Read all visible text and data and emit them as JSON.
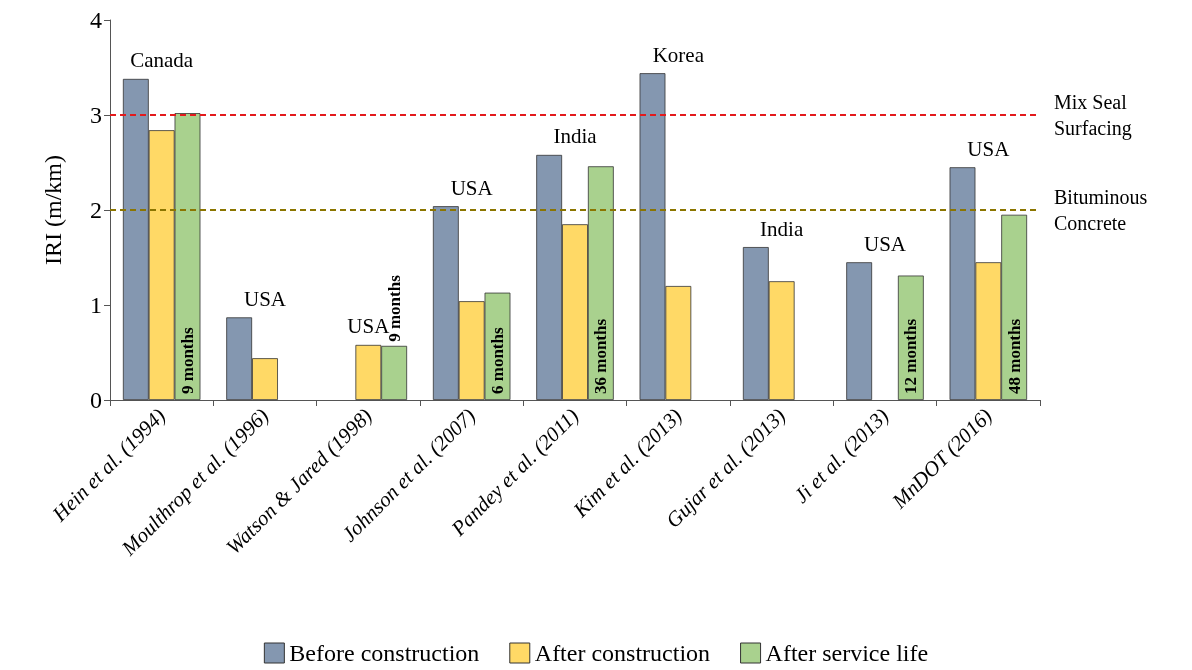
{
  "chart_data": {
    "type": "bar",
    "ylabel": "IRI (m/km)",
    "categories": [
      "Hein et al. (1994)",
      "Moulthrop et al. (1996)",
      "Watson & Jared (1998)",
      "Johnson et al. (2007)",
      "Pandey et al. (2011)",
      "Kim et al. (2013)",
      "Gujar et al. (2013)",
      "Ji et al. (2013)",
      "MnDOT (2016)"
    ],
    "series": [
      {
        "name": "Before construction",
        "color": "#8497b0",
        "values": [
          3.38,
          0.87,
          null,
          2.04,
          2.58,
          3.44,
          1.61,
          1.45,
          2.45
        ]
      },
      {
        "name": "After construction",
        "color": "#ffd966",
        "values": [
          2.84,
          0.44,
          0.58,
          1.04,
          1.85,
          1.2,
          1.25,
          null,
          1.45
        ]
      },
      {
        "name": "After service life",
        "color": "#a9d18e",
        "values": [
          3.02,
          null,
          0.57,
          1.13,
          2.46,
          null,
          null,
          1.31,
          1.95
        ]
      }
    ],
    "ylim": [
      0,
      4
    ],
    "yticks": [
      0,
      1,
      2,
      3,
      4
    ],
    "grid": false,
    "legend": "bottom",
    "ref_lines": [
      {
        "axis": "y",
        "value": 3,
        "label": "Mix Seal Surfacing",
        "color": "#e31a1c",
        "line_style": "dashed"
      },
      {
        "axis": "y",
        "value": 2,
        "label": "Bituminous Concrete",
        "color": "#8b7500",
        "line_style": "dashed"
      }
    ],
    "annotations": [
      "Canada",
      "USA",
      "USA",
      "USA",
      "India",
      "Korea",
      "India",
      "USA",
      "USA",
      "9 months",
      "9 months",
      "6 months",
      "36 months",
      "12 months",
      "48 months"
    ]
  }
}
